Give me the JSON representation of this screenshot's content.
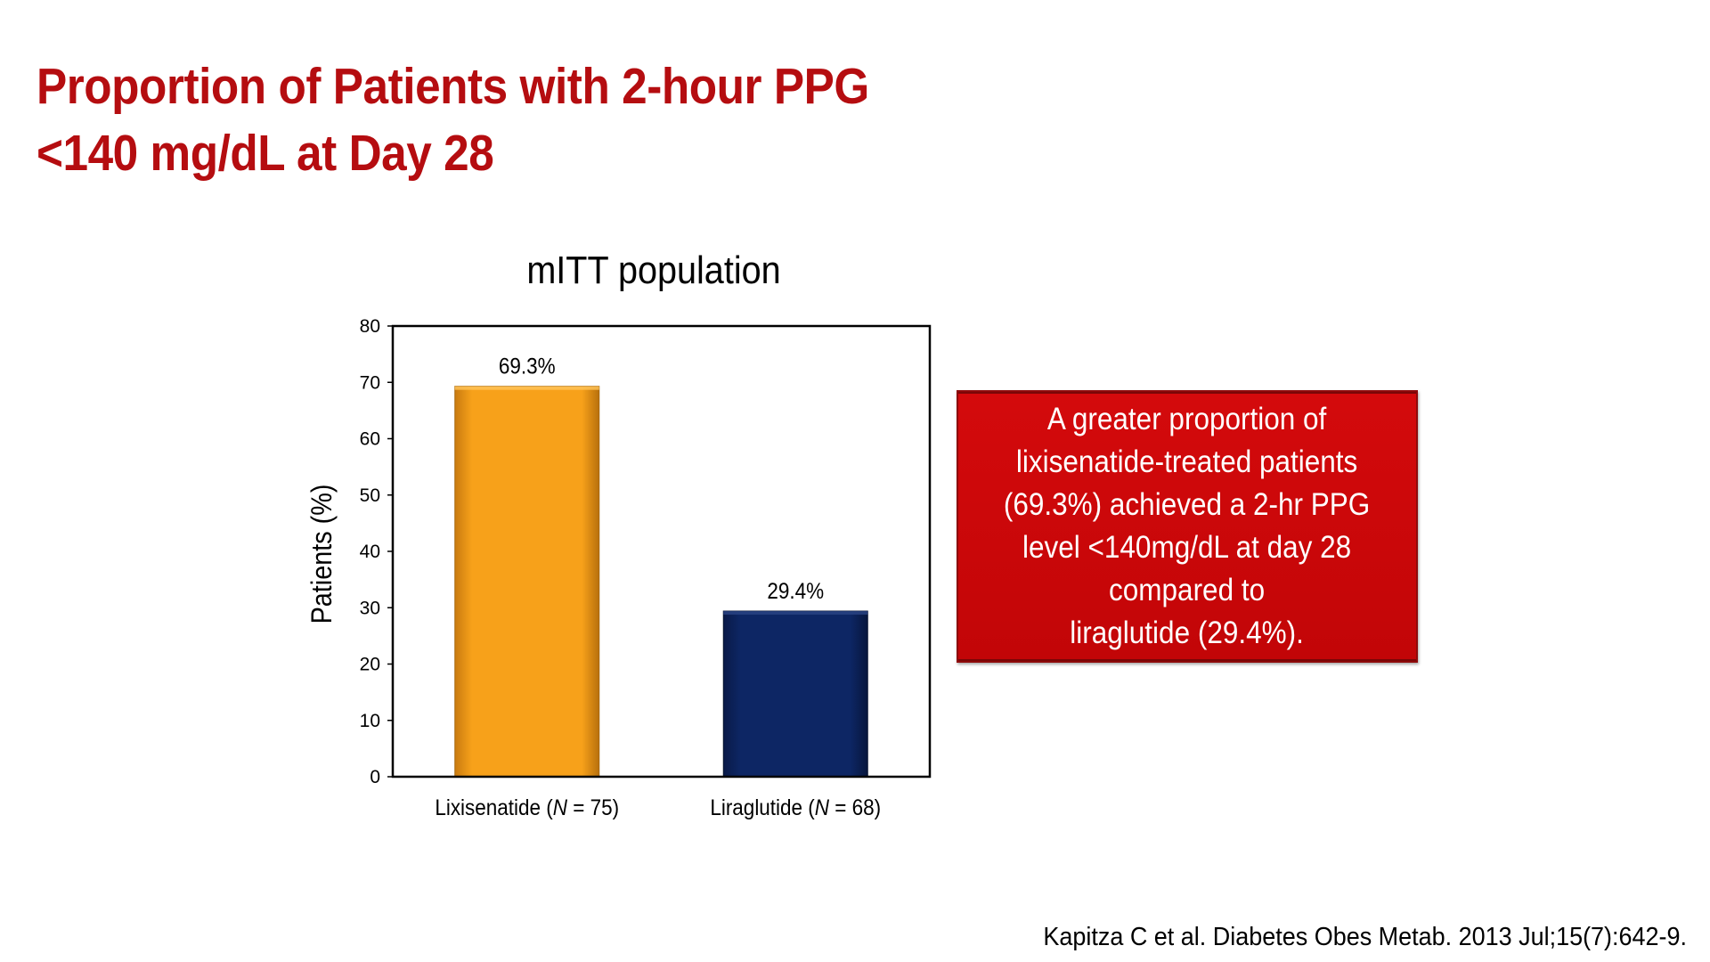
{
  "slide": {
    "title_line1": "Proportion of Patients with 2-hour PPG",
    "title_line2": "<140 mg/dL at Day 28",
    "callout": "A greater proportion of\nlixisenatide-treated patients\n(69.3%) achieved a 2-hr PPG\nlevel <140mg/dL at day 28\ncompared to\nliraglutide (29.4%).",
    "citation": "Kapitza C et al. Diabetes Obes Metab. 2013 Jul;15(7):642-9."
  },
  "colors": {
    "title": "#b50d10",
    "callout_bg": "#cc0a0c",
    "bar_lixisenatide": "#f7a11a",
    "bar_liraglutide": "#0d2664"
  },
  "chart_data": {
    "type": "bar",
    "title": "mITT population",
    "xlabel": "",
    "ylabel": "Patients (%)",
    "ylim": [
      0,
      80
    ],
    "yticks": [
      0,
      10,
      20,
      30,
      40,
      50,
      60,
      70,
      80
    ],
    "grid": false,
    "legend": "none",
    "categories": [
      {
        "name": "Lixisenatide",
        "n": "N",
        "rest": " = 75)"
      },
      {
        "name": "Liraglutide",
        "n": "N",
        "rest": " = 68)"
      }
    ],
    "values": [
      69.3,
      29.4
    ],
    "data_labels": [
      "69.3%",
      "29.4%"
    ],
    "bar_colors": [
      "#f7a11a",
      "#0d2664"
    ]
  }
}
